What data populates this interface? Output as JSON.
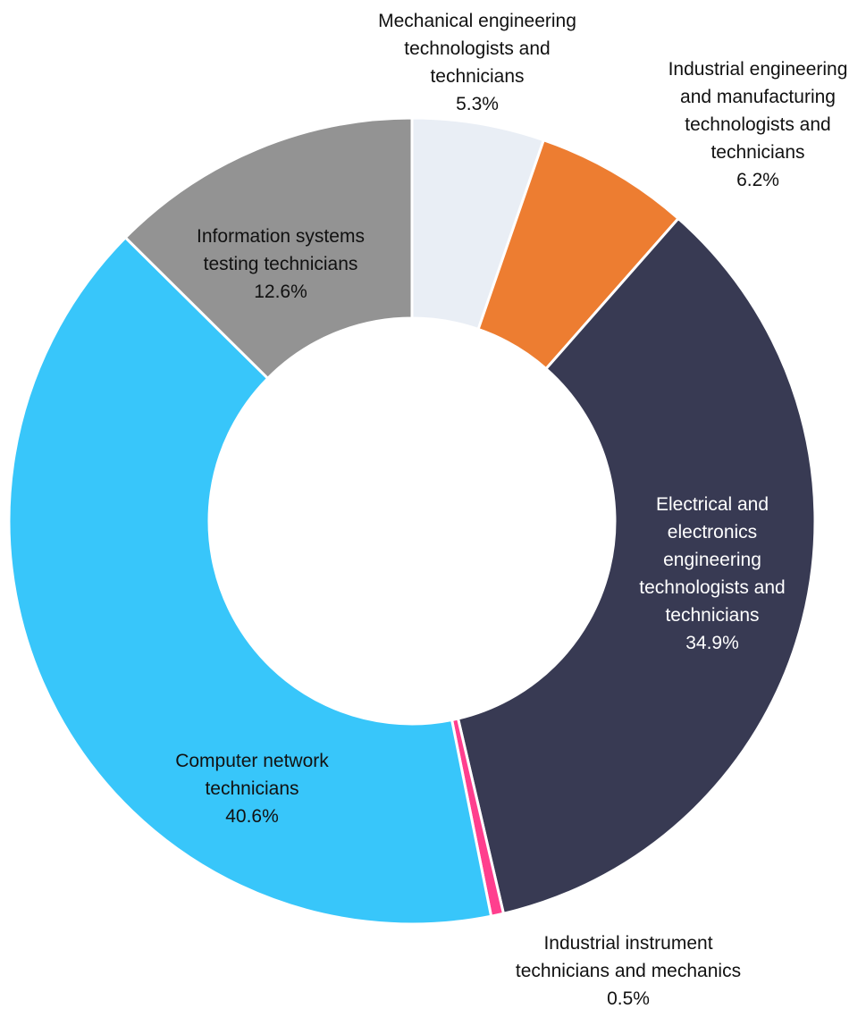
{
  "chart_data": {
    "type": "pie",
    "variant": "donut",
    "title": "",
    "legend": "none",
    "slices": [
      {
        "label": "Mechanical engineering technologists and technicians",
        "value": 5.3,
        "value_label": "5.3%",
        "color": "#E9EEF5",
        "label_color": "#111111"
      },
      {
        "label": "Industrial engineering and manufacturing technologists and technicians",
        "value": 6.2,
        "value_label": "6.2%",
        "color": "#ED7D31",
        "label_color": "#111111"
      },
      {
        "label": "Electrical and electronics engineering technologists and technicians",
        "value": 34.9,
        "value_label": "34.9%",
        "color": "#383A53",
        "label_color": "#FFFFFF"
      },
      {
        "label": "Industrial instrument technicians and mechanics",
        "value": 0.5,
        "value_label": "0.5%",
        "color": "#FF3F8E",
        "label_color": "#111111"
      },
      {
        "label": "Computer network technicians",
        "value": 40.6,
        "value_label": "40.6%",
        "color": "#38C6FA",
        "label_color": "#111111"
      },
      {
        "label": "Information systems testing technicians",
        "value": 12.6,
        "value_label": "12.6%",
        "color": "#939393",
        "label_color": "#111111"
      }
    ]
  }
}
